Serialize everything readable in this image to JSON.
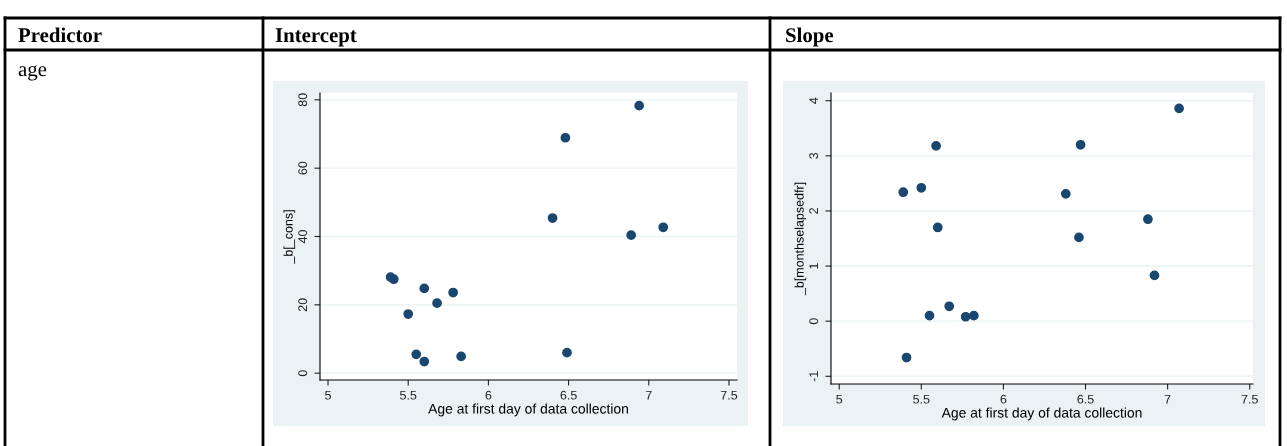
{
  "chart_data": [
    {
      "type": "scatter",
      "title": "Intercept",
      "xlabel": "Age at first day of data collection",
      "ylabel": "_b[_cons]",
      "annotations": [
        "Predictor",
        "age"
      ],
      "x": [
        5.39,
        5.41,
        5.6,
        5.78,
        5.68,
        5.5,
        5.55,
        5.6,
        5.83,
        6.49,
        6.4,
        6.48,
        6.94,
        6.89,
        7.09
      ],
      "series": [
        {
          "color": "#1a476f",
          "values": [
            28.1,
            27.5,
            24.8,
            23.6,
            20.5,
            17.3,
            5.5,
            3.4,
            4.9,
            6.0,
            45.4,
            68.9,
            78.3,
            40.4,
            42.7
          ]
        }
      ],
      "xlim": [
        4.95,
        7.55
      ],
      "ylim": [
        -2,
        82
      ],
      "xticks": [
        5,
        5.5,
        6,
        6.5,
        7,
        7.5
      ],
      "yticks": [
        0,
        20,
        40,
        60,
        80
      ],
      "grid": "y",
      "marker": "circle"
    },
    {
      "type": "scatter",
      "title": "Slope",
      "xlabel": "Age at first day of data collection",
      "ylabel": "_b[monthselapsedfr]",
      "x": [
        5.39,
        5.41,
        5.5,
        5.55,
        5.59,
        5.6,
        5.67,
        5.77,
        5.82,
        6.38,
        6.46,
        6.47,
        6.88,
        6.92,
        7.07
      ],
      "series": [
        {
          "color": "#1a476f",
          "values": [
            2.34,
            -0.66,
            2.42,
            0.1,
            3.18,
            1.7,
            0.27,
            0.08,
            0.1,
            2.31,
            1.52,
            3.2,
            1.85,
            0.83,
            3.86
          ]
        }
      ],
      "xlim": [
        4.95,
        7.52
      ],
      "ylim": [
        -1.14,
        4.14
      ],
      "xticks": [
        5,
        5.5,
        6,
        6.5,
        7,
        7.5
      ],
      "yticks": [
        -1,
        0,
        1,
        2,
        3,
        4
      ],
      "grid": "y",
      "marker": "circle"
    }
  ]
}
